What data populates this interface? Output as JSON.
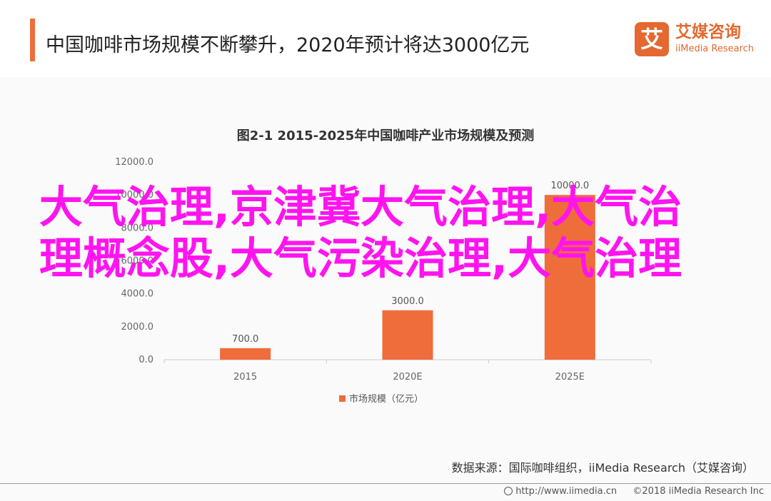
{
  "header": {
    "headline": "中国咖啡市场规模不断攀升，2020年预计将达3000亿元",
    "accent_color": "#ef6c3b"
  },
  "logo": {
    "badge": "艾",
    "name": "艾媒咨询",
    "sub": "iiMedia Research",
    "color": "#e4682f"
  },
  "overlay_text": "大气治理,京津冀大气治理,大气治理概念股,大气污染治理,大气治理",
  "source": "数据来源：国际咖啡组织，iiMedia Research（艾媒咨询）",
  "footer": {
    "url": "http://www.iimedia.cn",
    "copyright": "©2018  iiMedia Research  Inc"
  },
  "chart_data": {
    "type": "bar",
    "title": "图2-1 2015-2025年中国咖啡产业市场规模及预测",
    "categories": [
      "2015",
      "2020E",
      "2025E"
    ],
    "series": [
      {
        "name": "市场规模（亿元）",
        "values": [
          700.0,
          3000.0,
          10000.0
        ],
        "color": "#ef6c3b"
      }
    ],
    "data_labels": [
      "700.0",
      "3000.0",
      "10000.0"
    ],
    "y_ticks": [
      "0.0",
      "2000.0",
      "4000.0",
      "6000.0",
      "8000.0",
      "10000.0",
      "12000.0"
    ],
    "ylim": [
      0,
      12000
    ],
    "grid": false,
    "legend_position": "bottom"
  }
}
